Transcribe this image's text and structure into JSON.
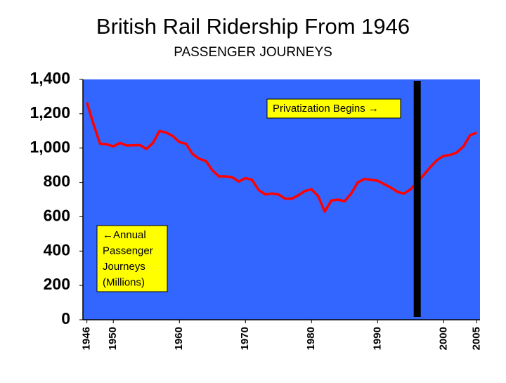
{
  "chart_data": {
    "type": "line",
    "title": "British Rail Ridership From 1946",
    "subtitle": "PASSENGER JOURNEYS",
    "x": [
      1946,
      1947,
      1948,
      1949,
      1950,
      1951,
      1952,
      1953,
      1954,
      1955,
      1956,
      1957,
      1958,
      1959,
      1960,
      1961,
      1962,
      1963,
      1964,
      1965,
      1966,
      1967,
      1968,
      1969,
      1970,
      1971,
      1972,
      1973,
      1974,
      1975,
      1976,
      1977,
      1978,
      1979,
      1980,
      1981,
      1982,
      1983,
      1984,
      1985,
      1986,
      1987,
      1988,
      1989,
      1990,
      1991,
      1992,
      1993,
      1994,
      1995,
      1996,
      1997,
      1998,
      1999,
      2000,
      2001,
      2002,
      2003,
      2004,
      2005
    ],
    "series": [
      {
        "color": "#ff0000",
        "values": [
          1266,
          1140,
          1025,
          1022,
          1010,
          1030,
          1015,
          1016,
          1018,
          995,
          1030,
          1100,
          1090,
          1070,
          1035,
          1025,
          965,
          938,
          925,
          870,
          835,
          835,
          830,
          805,
          825,
          815,
          755,
          730,
          735,
          730,
          705,
          705,
          725,
          750,
          760,
          720,
          630,
          695,
          700,
          690,
          735,
          800,
          820,
          815,
          810,
          790,
          770,
          745,
          735,
          760,
          800,
          845,
          890,
          930,
          955,
          960,
          975,
          1010,
          1075,
          1090
        ]
      }
    ],
    "xlim": [
      1945.4,
      2005.5
    ],
    "xticks": [
      1946,
      1950,
      1960,
      1970,
      1980,
      1990,
      2000,
      2005
    ],
    "ylim": [
      0,
      1400
    ],
    "yticks": [
      0,
      200,
      400,
      600,
      800,
      {
        "value": 1000,
        "label": "1,000"
      },
      {
        "value": 1200,
        "label": "1,200"
      },
      {
        "value": 1400,
        "label": "1,400"
      }
    ],
    "plot_color": "#3366ff",
    "vline": {
      "x": 1996,
      "color": "#000000"
    },
    "annotation_privatization": "Privatization Begins →",
    "annotation_units": [
      "←Annual",
      "Passenger",
      "Journeys",
      "(Millions)"
    ]
  }
}
